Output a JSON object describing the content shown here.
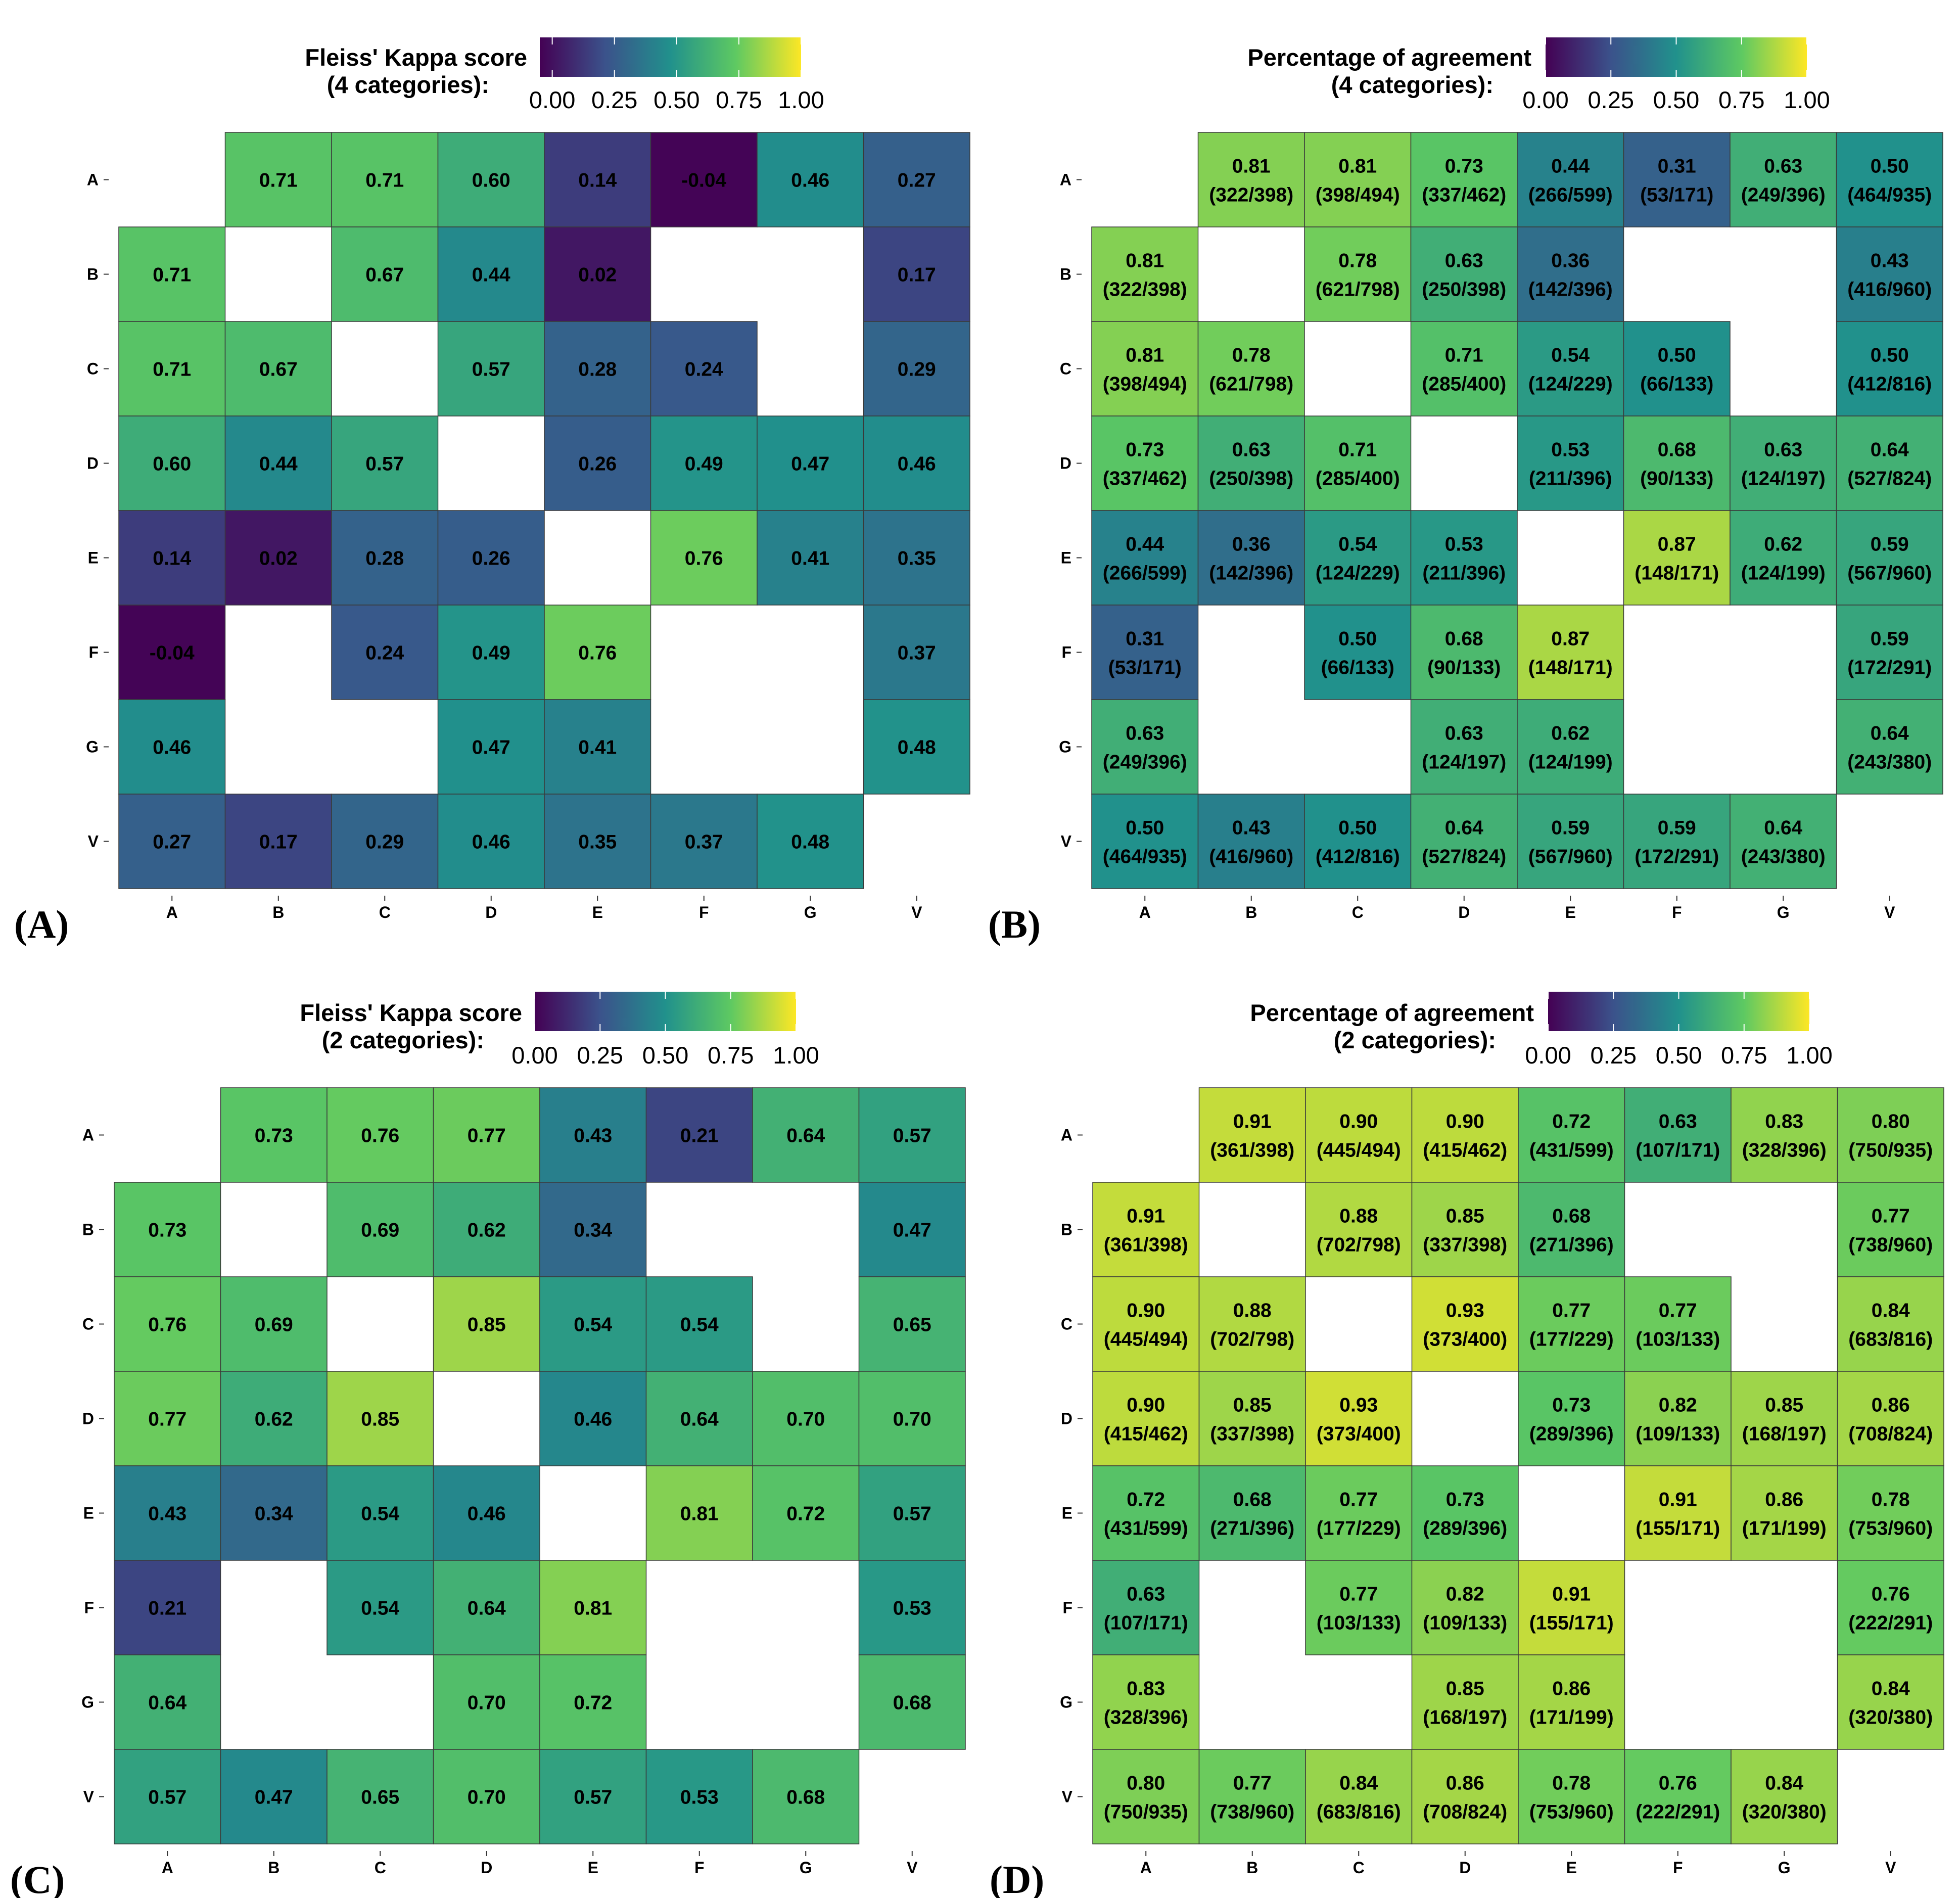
{
  "figure": {
    "row_labels": [
      "A",
      "B",
      "C",
      "D",
      "E",
      "F",
      "G",
      "V"
    ],
    "col_labels": [
      "A",
      "B",
      "C",
      "D",
      "E",
      "F",
      "G",
      "V"
    ],
    "colormap": [
      "#440154",
      "#3b528b",
      "#21918c",
      "#5ec962",
      "#fde725"
    ],
    "cell_border": "#3a3a3a"
  },
  "chart_data": [
    {
      "type": "heatmap",
      "panel_label": "(A)",
      "legend_title": [
        "Fleiss' Kappa score",
        "(4 categories):"
      ],
      "legend_ticks": [
        "0.00",
        "0.25",
        "0.50",
        "0.75",
        "1.00"
      ],
      "vmin": -0.05,
      "vmax": 1.0,
      "values": [
        [
          null,
          0.71,
          0.71,
          0.6,
          0.14,
          -0.04,
          0.46,
          0.27
        ],
        [
          0.71,
          null,
          0.67,
          0.44,
          0.02,
          null,
          null,
          0.17
        ],
        [
          0.71,
          0.67,
          null,
          0.57,
          0.28,
          0.24,
          null,
          0.29
        ],
        [
          0.6,
          0.44,
          0.57,
          null,
          0.26,
          0.49,
          0.47,
          0.46
        ],
        [
          0.14,
          0.02,
          0.28,
          0.26,
          null,
          0.76,
          0.41,
          0.35
        ],
        [
          -0.04,
          null,
          0.24,
          0.49,
          0.76,
          null,
          null,
          0.37
        ],
        [
          0.46,
          null,
          null,
          0.47,
          0.41,
          null,
          null,
          0.48
        ],
        [
          0.27,
          0.17,
          0.29,
          0.46,
          0.35,
          0.37,
          0.48,
          null
        ]
      ],
      "labels": [
        [
          null,
          [
            "0.71"
          ],
          [
            "0.71"
          ],
          [
            "0.60"
          ],
          [
            "0.14"
          ],
          [
            "-0.04"
          ],
          [
            "0.46"
          ],
          [
            "0.27"
          ]
        ],
        [
          [
            "0.71"
          ],
          null,
          [
            "0.67"
          ],
          [
            "0.44"
          ],
          [
            "0.02"
          ],
          null,
          null,
          [
            "0.17"
          ]
        ],
        [
          [
            "0.71"
          ],
          [
            "0.67"
          ],
          null,
          [
            "0.57"
          ],
          [
            "0.28"
          ],
          [
            "0.24"
          ],
          null,
          [
            "0.29"
          ]
        ],
        [
          [
            "0.60"
          ],
          [
            "0.44"
          ],
          [
            "0.57"
          ],
          null,
          [
            "0.26"
          ],
          [
            "0.49"
          ],
          [
            "0.47"
          ],
          [
            "0.46"
          ]
        ],
        [
          [
            "0.14"
          ],
          [
            "0.02"
          ],
          [
            "0.28"
          ],
          [
            "0.26"
          ],
          null,
          [
            "0.76"
          ],
          [
            "0.41"
          ],
          [
            "0.35"
          ]
        ],
        [
          [
            "-0.04"
          ],
          null,
          [
            "0.24"
          ],
          [
            "0.49"
          ],
          [
            "0.76"
          ],
          null,
          null,
          [
            "0.37"
          ]
        ],
        [
          [
            "0.46"
          ],
          null,
          null,
          [
            "0.47"
          ],
          [
            "0.41"
          ],
          null,
          null,
          [
            "0.48"
          ]
        ],
        [
          [
            "0.27"
          ],
          [
            "0.17"
          ],
          [
            "0.29"
          ],
          [
            "0.46"
          ],
          [
            "0.35"
          ],
          [
            "0.37"
          ],
          [
            "0.48"
          ],
          null
        ]
      ]
    },
    {
      "type": "heatmap",
      "panel_label": "(B)",
      "legend_title": [
        "Percentage of agreement",
        "(4 categories):"
      ],
      "legend_ticks": [
        "0.00",
        "0.25",
        "0.50",
        "0.75",
        "1.00"
      ],
      "vmin": 0.0,
      "vmax": 1.0,
      "values": [
        [
          null,
          0.81,
          0.81,
          0.73,
          0.44,
          0.31,
          0.63,
          0.5
        ],
        [
          0.81,
          null,
          0.78,
          0.63,
          0.36,
          null,
          null,
          0.43
        ],
        [
          0.81,
          0.78,
          null,
          0.71,
          0.54,
          0.5,
          null,
          0.5
        ],
        [
          0.73,
          0.63,
          0.71,
          null,
          0.53,
          0.68,
          0.63,
          0.64
        ],
        [
          0.44,
          0.36,
          0.54,
          0.53,
          null,
          0.87,
          0.62,
          0.59
        ],
        [
          0.31,
          null,
          0.5,
          0.68,
          0.87,
          null,
          null,
          0.59
        ],
        [
          0.63,
          null,
          null,
          0.63,
          0.62,
          null,
          null,
          0.64
        ],
        [
          0.5,
          0.43,
          0.5,
          0.64,
          0.59,
          0.59,
          0.64,
          null
        ]
      ],
      "labels": [
        [
          null,
          [
            "0.81",
            "(322/398)"
          ],
          [
            "0.81",
            "(398/494)"
          ],
          [
            "0.73",
            "(337/462)"
          ],
          [
            "0.44",
            "(266/599)"
          ],
          [
            "0.31",
            "(53/171)"
          ],
          [
            "0.63",
            "(249/396)"
          ],
          [
            "0.50",
            "(464/935)"
          ]
        ],
        [
          [
            "0.81",
            "(322/398)"
          ],
          null,
          [
            "0.78",
            "(621/798)"
          ],
          [
            "0.63",
            "(250/398)"
          ],
          [
            "0.36",
            "(142/396)"
          ],
          null,
          null,
          [
            "0.43",
            "(416/960)"
          ]
        ],
        [
          [
            "0.81",
            "(398/494)"
          ],
          [
            "0.78",
            "(621/798)"
          ],
          null,
          [
            "0.71",
            "(285/400)"
          ],
          [
            "0.54",
            "(124/229)"
          ],
          [
            "0.50",
            "(66/133)"
          ],
          null,
          [
            "0.50",
            "(412/816)"
          ]
        ],
        [
          [
            "0.73",
            "(337/462)"
          ],
          [
            "0.63",
            "(250/398)"
          ],
          [
            "0.71",
            "(285/400)"
          ],
          null,
          [
            "0.53",
            "(211/396)"
          ],
          [
            "0.68",
            "(90/133)"
          ],
          [
            "0.63",
            "(124/197)"
          ],
          [
            "0.64",
            "(527/824)"
          ]
        ],
        [
          [
            "0.44",
            "(266/599)"
          ],
          [
            "0.36",
            "(142/396)"
          ],
          [
            "0.54",
            "(124/229)"
          ],
          [
            "0.53",
            "(211/396)"
          ],
          null,
          [
            "0.87",
            "(148/171)"
          ],
          [
            "0.62",
            "(124/199)"
          ],
          [
            "0.59",
            "(567/960)"
          ]
        ],
        [
          [
            "0.31",
            "(53/171)"
          ],
          null,
          [
            "0.50",
            "(66/133)"
          ],
          [
            "0.68",
            "(90/133)"
          ],
          [
            "0.87",
            "(148/171)"
          ],
          null,
          null,
          [
            "0.59",
            "(172/291)"
          ]
        ],
        [
          [
            "0.63",
            "(249/396)"
          ],
          null,
          null,
          [
            "0.63",
            "(124/197)"
          ],
          [
            "0.62",
            "(124/199)"
          ],
          null,
          null,
          [
            "0.64",
            "(243/380)"
          ]
        ],
        [
          [
            "0.50",
            "(464/935)"
          ],
          [
            "0.43",
            "(416/960)"
          ],
          [
            "0.50",
            "(412/816)"
          ],
          [
            "0.64",
            "(527/824)"
          ],
          [
            "0.59",
            "(567/960)"
          ],
          [
            "0.59",
            "(172/291)"
          ],
          [
            "0.64",
            "(243/380)"
          ],
          null
        ]
      ]
    },
    {
      "type": "heatmap",
      "panel_label": "(C)",
      "legend_title": [
        "Fleiss' Kappa score",
        "(2 categories):"
      ],
      "legend_ticks": [
        "0.00",
        "0.25",
        "0.50",
        "0.75",
        "1.00"
      ],
      "vmin": 0.0,
      "vmax": 1.0,
      "values": [
        [
          null,
          0.73,
          0.76,
          0.77,
          0.43,
          0.21,
          0.64,
          0.57
        ],
        [
          0.73,
          null,
          0.69,
          0.62,
          0.34,
          null,
          null,
          0.47
        ],
        [
          0.76,
          0.69,
          null,
          0.85,
          0.54,
          0.54,
          null,
          0.65
        ],
        [
          0.77,
          0.62,
          0.85,
          null,
          0.46,
          0.64,
          0.7,
          0.7
        ],
        [
          0.43,
          0.34,
          0.54,
          0.46,
          null,
          0.81,
          0.72,
          0.57
        ],
        [
          0.21,
          null,
          0.54,
          0.64,
          0.81,
          null,
          null,
          0.53
        ],
        [
          0.64,
          null,
          null,
          0.7,
          0.72,
          null,
          null,
          0.68
        ],
        [
          0.57,
          0.47,
          0.65,
          0.7,
          0.57,
          0.53,
          0.68,
          null
        ]
      ],
      "labels": [
        [
          null,
          [
            "0.73"
          ],
          [
            "0.76"
          ],
          [
            "0.77"
          ],
          [
            "0.43"
          ],
          [
            "0.21"
          ],
          [
            "0.64"
          ],
          [
            "0.57"
          ]
        ],
        [
          [
            "0.73"
          ],
          null,
          [
            "0.69"
          ],
          [
            "0.62"
          ],
          [
            "0.34"
          ],
          null,
          null,
          [
            "0.47"
          ]
        ],
        [
          [
            "0.76"
          ],
          [
            "0.69"
          ],
          null,
          [
            "0.85"
          ],
          [
            "0.54"
          ],
          [
            "0.54"
          ],
          null,
          [
            "0.65"
          ]
        ],
        [
          [
            "0.77"
          ],
          [
            "0.62"
          ],
          [
            "0.85"
          ],
          null,
          [
            "0.46"
          ],
          [
            "0.64"
          ],
          [
            "0.70"
          ],
          [
            "0.70"
          ]
        ],
        [
          [
            "0.43"
          ],
          [
            "0.34"
          ],
          [
            "0.54"
          ],
          [
            "0.46"
          ],
          null,
          [
            "0.81"
          ],
          [
            "0.72"
          ],
          [
            "0.57"
          ]
        ],
        [
          [
            "0.21"
          ],
          null,
          [
            "0.54"
          ],
          [
            "0.64"
          ],
          [
            "0.81"
          ],
          null,
          null,
          [
            "0.53"
          ]
        ],
        [
          [
            "0.64"
          ],
          null,
          null,
          [
            "0.70"
          ],
          [
            "0.72"
          ],
          null,
          null,
          [
            "0.68"
          ]
        ],
        [
          [
            "0.57"
          ],
          [
            "0.47"
          ],
          [
            "0.65"
          ],
          [
            "0.70"
          ],
          [
            "0.57"
          ],
          [
            "0.53"
          ],
          [
            "0.68"
          ],
          null
        ]
      ]
    },
    {
      "type": "heatmap",
      "panel_label": "(D)",
      "legend_title": [
        "Percentage of agreement",
        "(2 categories):"
      ],
      "legend_ticks": [
        "0.00",
        "0.25",
        "0.50",
        "0.75",
        "1.00"
      ],
      "vmin": 0.0,
      "vmax": 1.0,
      "values": [
        [
          null,
          0.91,
          0.9,
          0.9,
          0.72,
          0.63,
          0.83,
          0.8
        ],
        [
          0.91,
          null,
          0.88,
          0.85,
          0.68,
          null,
          null,
          0.77
        ],
        [
          0.9,
          0.88,
          null,
          0.93,
          0.77,
          0.77,
          null,
          0.84
        ],
        [
          0.9,
          0.85,
          0.93,
          null,
          0.73,
          0.82,
          0.85,
          0.86
        ],
        [
          0.72,
          0.68,
          0.77,
          0.73,
          null,
          0.91,
          0.86,
          0.78
        ],
        [
          0.63,
          null,
          0.77,
          0.82,
          0.91,
          null,
          null,
          0.76
        ],
        [
          0.83,
          null,
          null,
          0.85,
          0.86,
          null,
          null,
          0.84
        ],
        [
          0.8,
          0.77,
          0.84,
          0.86,
          0.78,
          0.76,
          0.84,
          null
        ]
      ],
      "labels": [
        [
          null,
          [
            "0.91",
            "(361/398)"
          ],
          [
            "0.90",
            "(445/494)"
          ],
          [
            "0.90",
            "(415/462)"
          ],
          [
            "0.72",
            "(431/599)"
          ],
          [
            "0.63",
            "(107/171)"
          ],
          [
            "0.83",
            "(328/396)"
          ],
          [
            "0.80",
            "(750/935)"
          ]
        ],
        [
          [
            "0.91",
            "(361/398)"
          ],
          null,
          [
            "0.88",
            "(702/798)"
          ],
          [
            "0.85",
            "(337/398)"
          ],
          [
            "0.68",
            "(271/396)"
          ],
          null,
          null,
          [
            "0.77",
            "(738/960)"
          ]
        ],
        [
          [
            "0.90",
            "(445/494)"
          ],
          [
            "0.88",
            "(702/798)"
          ],
          null,
          [
            "0.93",
            "(373/400)"
          ],
          [
            "0.77",
            "(177/229)"
          ],
          [
            "0.77",
            "(103/133)"
          ],
          null,
          [
            "0.84",
            "(683/816)"
          ]
        ],
        [
          [
            "0.90",
            "(415/462)"
          ],
          [
            "0.85",
            "(337/398)"
          ],
          [
            "0.93",
            "(373/400)"
          ],
          null,
          [
            "0.73",
            "(289/396)"
          ],
          [
            "0.82",
            "(109/133)"
          ],
          [
            "0.85",
            "(168/197)"
          ],
          [
            "0.86",
            "(708/824)"
          ]
        ],
        [
          [
            "0.72",
            "(431/599)"
          ],
          [
            "0.68",
            "(271/396)"
          ],
          [
            "0.77",
            "(177/229)"
          ],
          [
            "0.73",
            "(289/396)"
          ],
          null,
          [
            "0.91",
            "(155/171)"
          ],
          [
            "0.86",
            "(171/199)"
          ],
          [
            "0.78",
            "(753/960)"
          ]
        ],
        [
          [
            "0.63",
            "(107/171)"
          ],
          null,
          [
            "0.77",
            "(103/133)"
          ],
          [
            "0.82",
            "(109/133)"
          ],
          [
            "0.91",
            "(155/171)"
          ],
          null,
          null,
          [
            "0.76",
            "(222/291)"
          ]
        ],
        [
          [
            "0.83",
            "(328/396)"
          ],
          null,
          null,
          [
            "0.85",
            "(168/197)"
          ],
          [
            "0.86",
            "(171/199)"
          ],
          null,
          null,
          [
            "0.84",
            "(320/380)"
          ]
        ],
        [
          [
            "0.80",
            "(750/935)"
          ],
          [
            "0.77",
            "(738/960)"
          ],
          [
            "0.84",
            "(683/816)"
          ],
          [
            "0.86",
            "(708/824)"
          ],
          [
            "0.78",
            "(753/960)"
          ],
          [
            "0.76",
            "(222/291)"
          ],
          [
            "0.84",
            "(320/380)"
          ],
          null
        ]
      ]
    }
  ]
}
